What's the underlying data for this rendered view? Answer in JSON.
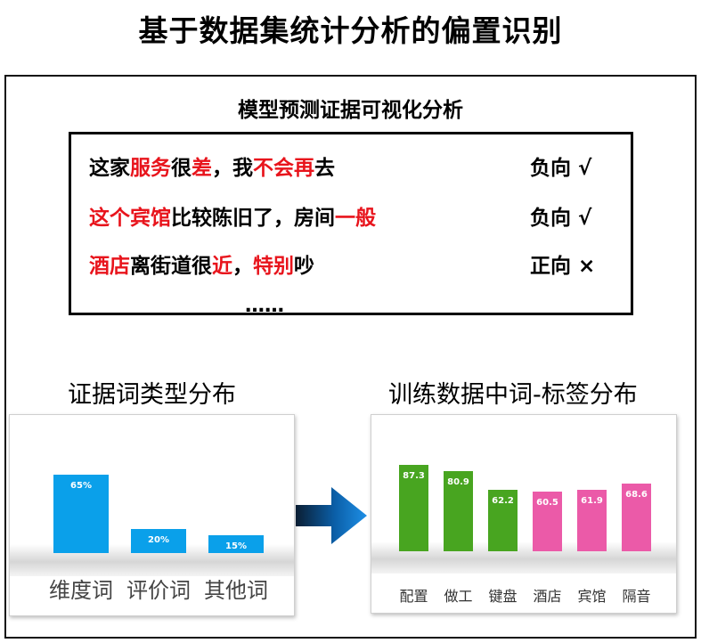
{
  "title": "基于数据集统计分析的偏置识别",
  "evidence_panel": {
    "title": "模型预测证据可视化分析",
    "rows": [
      {
        "segments": [
          {
            "text": "这家",
            "highlight": false
          },
          {
            "text": "服务",
            "highlight": true
          },
          {
            "text": "很",
            "highlight": false
          },
          {
            "text": "差",
            "highlight": true
          },
          {
            "text": "，我",
            "highlight": false
          },
          {
            "text": "不会",
            "highlight": true
          },
          {
            "text": "再",
            "highlight": true
          },
          {
            "text": "去",
            "highlight": false
          }
        ],
        "label": "负向 √"
      },
      {
        "segments": [
          {
            "text": "这个宾馆",
            "highlight": true
          },
          {
            "text": "比较陈旧了，房间",
            "highlight": false
          },
          {
            "text": "一般",
            "highlight": true
          }
        ],
        "label": "负向 √"
      },
      {
        "segments": [
          {
            "text": "酒店",
            "highlight": true
          },
          {
            "text": "离街道很",
            "highlight": false
          },
          {
            "text": "近",
            "highlight": true
          },
          {
            "text": "，",
            "highlight": false
          },
          {
            "text": "特别",
            "highlight": true
          },
          {
            "text": "吵",
            "highlight": false
          }
        ],
        "label": "正向 ×"
      }
    ],
    "ellipsis": "……",
    "highlight_color": "#e8141c"
  },
  "left_panel": {
    "title": "证据词类型分布"
  },
  "right_panel": {
    "title": "训练数据中词-标签分布"
  },
  "chart_data": [
    {
      "type": "bar",
      "title": "证据词类型分布",
      "categories": [
        "维度词",
        "评价词",
        "其他词"
      ],
      "values": [
        65,
        20,
        15
      ],
      "value_labels": [
        "65%",
        "20%",
        "15%"
      ],
      "unit": "%",
      "ylim": [
        0,
        100
      ],
      "colors": [
        "#0aa0ea",
        "#0aa0ea",
        "#0aa0ea"
      ],
      "grid": false
    },
    {
      "type": "bar",
      "title": "训练数据中词-标签分布",
      "categories": [
        "配置",
        "做工",
        "键盘",
        "酒店",
        "宾馆",
        "隔音"
      ],
      "values": [
        87.3,
        80.9,
        62.2,
        60.5,
        61.9,
        68.6
      ],
      "value_labels": [
        "87.3",
        "80.9",
        "62.2",
        "60.5",
        "61.9",
        "68.6"
      ],
      "ylim": [
        0,
        100
      ],
      "colors": [
        "#48a520",
        "#48a520",
        "#48a520",
        "#eb5aa8",
        "#eb5aa8",
        "#eb5aa8"
      ],
      "grid": false
    }
  ],
  "arrow_icon": "right-arrow-icon"
}
